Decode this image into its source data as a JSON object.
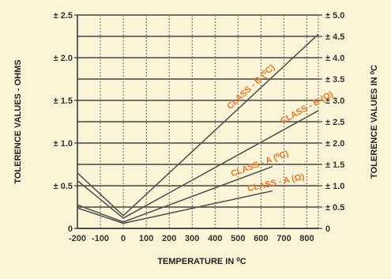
{
  "chart_data": {
    "type": "line",
    "xlabel": "TEMPERATURE  IN  ⁰C",
    "ylabel_left": "TOLERENCE VALUES - OHMS",
    "ylabel_right": "TOLERENCE VALUES  IN  ⁰C",
    "xlim": [
      -200,
      850
    ],
    "ylim_left": [
      0,
      2.5
    ],
    "ylim_right": [
      0,
      5.0
    ],
    "x_ticks": [
      "-200",
      "-100",
      "0",
      "100",
      "200",
      "300",
      "400",
      "500",
      "600",
      "700",
      "800"
    ],
    "y_left_ticks": [
      "0",
      "± 0.5",
      "± 1.0",
      "± 1.5",
      "± 2.0",
      "± 2.5"
    ],
    "y_right_ticks": [
      "0",
      "± 0.5",
      "± 1.0",
      "± 1.5",
      "± 2.0",
      "± 2.5",
      "± 3.0",
      "± 3.5",
      "± 4.0",
      "± 4.5",
      "± 5.0"
    ],
    "series": [
      {
        "name": "CLASS - B (⁰C)",
        "axis": "right",
        "x": [
          -200,
          0,
          850
        ],
        "y": [
          1.3,
          0.3,
          4.55
        ]
      },
      {
        "name": "CLASS - B (Ω)",
        "axis": "left",
        "x": [
          -200,
          0,
          850
        ],
        "y": [
          0.56,
          0.12,
          1.38
        ]
      },
      {
        "name": "CLASS - A (⁰C)",
        "axis": "right",
        "x": [
          -200,
          0,
          650
        ],
        "y": [
          0.55,
          0.15,
          1.45
        ]
      },
      {
        "name": "CLASS - A (Ω)",
        "axis": "left",
        "x": [
          -200,
          0,
          650
        ],
        "y": [
          0.24,
          0.06,
          0.44
        ]
      }
    ],
    "grid": true,
    "colors": {
      "background": "#fbf4d6",
      "line": "#555555",
      "label": "#e8762a",
      "grid": "#444444"
    }
  }
}
